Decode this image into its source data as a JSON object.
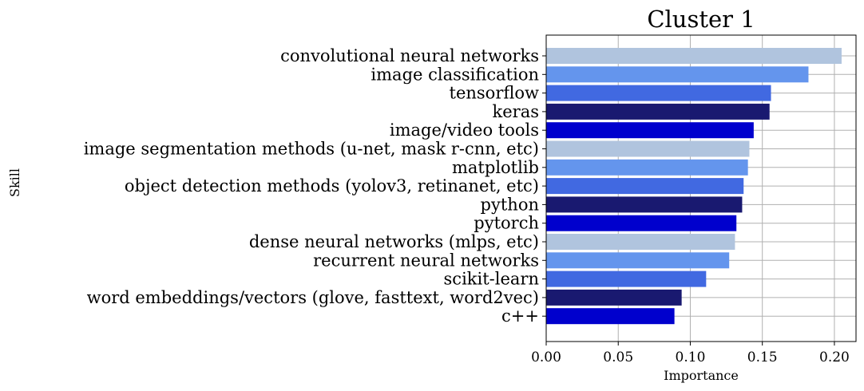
{
  "chart_data": {
    "type": "bar",
    "orientation": "horizontal",
    "title": "Cluster 1",
    "xlabel": "Importance",
    "ylabel": "Skill",
    "xlim": [
      0,
      0.215
    ],
    "xticks": [
      0.0,
      0.05,
      0.1,
      0.15,
      0.2
    ],
    "xtick_labels": [
      "0.00",
      "0.05",
      "0.10",
      "0.15",
      "0.20"
    ],
    "grid": true,
    "categories": [
      "convolutional neural networks",
      "image classification",
      "tensorflow",
      "keras",
      "image/video tools",
      "image segmentation methods (u-net, mask r-cnn, etc)",
      "matplotlib",
      "object detection methods (yolov3, retinanet, etc)",
      "python",
      "pytorch",
      "dense neural networks (mlps, etc)",
      "recurrent neural networks",
      "scikit-learn",
      "word embeddings/vectors (glove, fasttext, word2vec)",
      "c++"
    ],
    "values": [
      0.205,
      0.182,
      0.156,
      0.155,
      0.144,
      0.141,
      0.14,
      0.137,
      0.136,
      0.132,
      0.131,
      0.127,
      0.111,
      0.094,
      0.089
    ],
    "colors": [
      "#b0c4de",
      "#6495ed",
      "#4169e1",
      "#191970",
      "#0000cd"
    ]
  }
}
